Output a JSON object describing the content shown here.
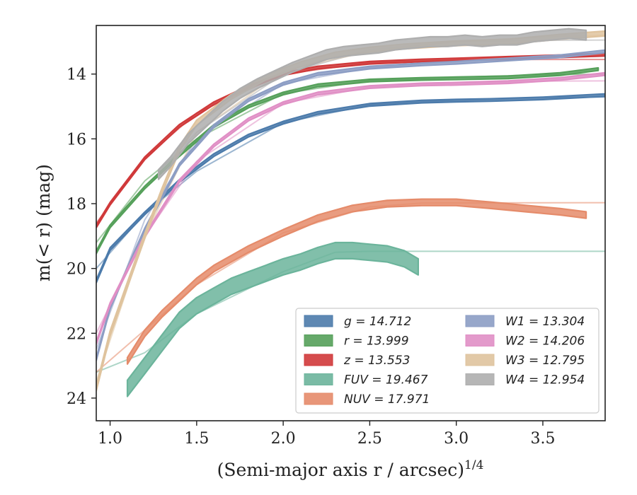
{
  "chart_data": {
    "type": "line",
    "xlabel": "(Semi-major axis r / arcsec)",
    "xlabel_exponent": "1/4",
    "ylabel": "m(< r) (mag)",
    "xlim": [
      0.92,
      3.86
    ],
    "ylim": [
      24.7,
      12.5
    ],
    "y_inverted": true,
    "grid": false,
    "legend_placement": "lower-right",
    "x_ticks": [
      "1.0",
      "1.5",
      "2.0",
      "2.5",
      "3.0",
      "3.5"
    ],
    "y_ticks": [
      "14",
      "16",
      "18",
      "20",
      "22",
      "24"
    ],
    "series": [
      {
        "key": "g",
        "name": "g = 14.712",
        "color": "#4c7bab",
        "band_width": 0.08,
        "curve": [
          [
            0.92,
            20.4
          ],
          [
            1.0,
            19.4
          ],
          [
            1.2,
            18.3
          ],
          [
            1.4,
            17.3
          ],
          [
            1.6,
            16.5
          ],
          [
            1.8,
            15.9
          ],
          [
            2.0,
            15.5
          ],
          [
            2.2,
            15.2
          ],
          [
            2.5,
            14.95
          ],
          [
            2.8,
            14.85
          ],
          [
            3.0,
            14.82
          ],
          [
            3.2,
            14.8
          ],
          [
            3.5,
            14.75
          ],
          [
            3.86,
            14.65
          ]
        ],
        "model": [
          [
            0.92,
            20.0
          ],
          [
            1.2,
            18.3
          ],
          [
            1.5,
            17.0
          ],
          [
            2.0,
            15.5
          ],
          [
            2.5,
            14.95
          ],
          [
            3.0,
            14.8
          ],
          [
            3.5,
            14.72
          ],
          [
            3.86,
            14.71
          ]
        ]
      },
      {
        "key": "r",
        "name": "r = 13.999",
        "color": "#55a05a",
        "band_width": 0.08,
        "curve": [
          [
            0.92,
            19.5
          ],
          [
            1.0,
            18.7
          ],
          [
            1.2,
            17.5
          ],
          [
            1.4,
            16.5
          ],
          [
            1.6,
            15.6
          ],
          [
            1.8,
            15.0
          ],
          [
            2.0,
            14.6
          ],
          [
            2.2,
            14.35
          ],
          [
            2.5,
            14.2
          ],
          [
            2.8,
            14.15
          ],
          [
            3.0,
            14.13
          ],
          [
            3.3,
            14.1
          ],
          [
            3.6,
            14.0
          ],
          [
            3.82,
            13.85
          ]
        ],
        "model": [
          [
            0.92,
            19.2
          ],
          [
            1.2,
            17.3
          ],
          [
            1.5,
            16.0
          ],
          [
            2.0,
            14.6
          ],
          [
            2.5,
            14.2
          ],
          [
            3.0,
            14.1
          ],
          [
            3.5,
            14.02
          ],
          [
            3.86,
            14.0
          ]
        ]
      },
      {
        "key": "z",
        "name": "z = 13.553",
        "color": "#d0393a",
        "band_width": 0.08,
        "curve": [
          [
            0.92,
            18.7
          ],
          [
            1.0,
            18.0
          ],
          [
            1.2,
            16.6
          ],
          [
            1.4,
            15.6
          ],
          [
            1.6,
            14.9
          ],
          [
            1.8,
            14.4
          ],
          [
            2.0,
            14.0
          ],
          [
            2.2,
            13.8
          ],
          [
            2.5,
            13.65
          ],
          [
            2.8,
            13.58
          ],
          [
            3.0,
            13.55
          ],
          [
            3.3,
            13.5
          ],
          [
            3.6,
            13.45
          ],
          [
            3.86,
            13.4
          ]
        ],
        "model": [
          [
            0.92,
            18.6
          ],
          [
            1.2,
            16.6
          ],
          [
            1.5,
            15.2
          ],
          [
            2.0,
            14.0
          ],
          [
            2.5,
            13.65
          ],
          [
            3.0,
            13.56
          ],
          [
            3.5,
            13.55
          ],
          [
            3.86,
            13.55
          ]
        ]
      },
      {
        "key": "FUV",
        "name": "FUV = 19.467",
        "color": "#6bb49b",
        "band_width": 0.5,
        "curve": [
          [
            1.1,
            23.7
          ],
          [
            1.2,
            23.0
          ],
          [
            1.3,
            22.3
          ],
          [
            1.4,
            21.6
          ],
          [
            1.5,
            21.15
          ],
          [
            1.6,
            20.85
          ],
          [
            1.7,
            20.55
          ],
          [
            1.8,
            20.35
          ],
          [
            1.9,
            20.15
          ],
          [
            2.0,
            19.95
          ],
          [
            2.1,
            19.8
          ],
          [
            2.2,
            19.6
          ],
          [
            2.3,
            19.45
          ],
          [
            2.4,
            19.45
          ],
          [
            2.5,
            19.5
          ],
          [
            2.6,
            19.55
          ],
          [
            2.7,
            19.7
          ],
          [
            2.78,
            19.95
          ]
        ],
        "model": [
          [
            0.92,
            23.2
          ],
          [
            1.2,
            22.6
          ],
          [
            1.5,
            21.4
          ],
          [
            2.0,
            20.1
          ],
          [
            2.3,
            19.5
          ],
          [
            2.5,
            19.47
          ],
          [
            3.86,
            19.47
          ]
        ]
      },
      {
        "key": "NUV",
        "name": "NUV = 17.971",
        "color": "#e58b6a",
        "band_width": 0.2,
        "curve": [
          [
            1.1,
            22.85
          ],
          [
            1.2,
            22.0
          ],
          [
            1.3,
            21.4
          ],
          [
            1.4,
            20.9
          ],
          [
            1.5,
            20.4
          ],
          [
            1.6,
            20.0
          ],
          [
            1.8,
            19.4
          ],
          [
            2.0,
            18.9
          ],
          [
            2.2,
            18.45
          ],
          [
            2.4,
            18.15
          ],
          [
            2.6,
            18.0
          ],
          [
            2.8,
            17.96
          ],
          [
            3.0,
            17.96
          ],
          [
            3.2,
            18.05
          ],
          [
            3.4,
            18.15
          ],
          [
            3.5,
            18.2
          ],
          [
            3.6,
            18.25
          ],
          [
            3.75,
            18.35
          ]
        ],
        "model": [
          [
            0.92,
            23.2
          ],
          [
            1.2,
            21.9
          ],
          [
            1.5,
            20.5
          ],
          [
            2.0,
            18.9
          ],
          [
            2.5,
            18.1
          ],
          [
            2.8,
            17.98
          ],
          [
            3.86,
            17.97
          ]
        ]
      },
      {
        "key": "W1",
        "name": "W1 = 13.304",
        "color": "#8c9dc4",
        "band_width": 0.08,
        "curve": [
          [
            0.92,
            22.8
          ],
          [
            1.0,
            21.2
          ],
          [
            1.2,
            18.8
          ],
          [
            1.4,
            16.8
          ],
          [
            1.6,
            15.6
          ],
          [
            1.8,
            14.8
          ],
          [
            2.0,
            14.3
          ],
          [
            2.2,
            14.0
          ],
          [
            2.5,
            13.8
          ],
          [
            2.8,
            13.7
          ],
          [
            3.0,
            13.65
          ],
          [
            3.3,
            13.55
          ],
          [
            3.6,
            13.45
          ],
          [
            3.86,
            13.3
          ]
        ],
        "model": [
          [
            0.92,
            22.5
          ],
          [
            1.2,
            18.5
          ],
          [
            1.5,
            16.0
          ],
          [
            2.0,
            14.3
          ],
          [
            2.5,
            13.8
          ],
          [
            3.0,
            13.6
          ],
          [
            3.5,
            13.5
          ],
          [
            3.86,
            13.45
          ]
        ]
      },
      {
        "key": "W2",
        "name": "W2 = 14.206",
        "color": "#e08fc5",
        "band_width": 0.08,
        "curve": [
          [
            0.92,
            22.3
          ],
          [
            1.0,
            21.1
          ],
          [
            1.2,
            19.0
          ],
          [
            1.4,
            17.3
          ],
          [
            1.6,
            16.2
          ],
          [
            1.8,
            15.4
          ],
          [
            2.0,
            14.9
          ],
          [
            2.2,
            14.6
          ],
          [
            2.5,
            14.4
          ],
          [
            2.8,
            14.32
          ],
          [
            3.0,
            14.3
          ],
          [
            3.3,
            14.25
          ],
          [
            3.6,
            14.15
          ],
          [
            3.86,
            14.0
          ]
        ],
        "model": [
          [
            0.92,
            22.0
          ],
          [
            1.2,
            19.0
          ],
          [
            1.5,
            16.7
          ],
          [
            2.0,
            14.9
          ],
          [
            2.5,
            14.4
          ],
          [
            3.0,
            14.28
          ],
          [
            3.5,
            14.22
          ],
          [
            3.86,
            14.21
          ]
        ]
      },
      {
        "key": "W3",
        "name": "W3 = 12.795",
        "color": "#dfc39d",
        "band_width": 0.15,
        "curve": [
          [
            0.92,
            23.7
          ],
          [
            1.0,
            22.0
          ],
          [
            1.1,
            20.5
          ],
          [
            1.2,
            19.0
          ],
          [
            1.3,
            17.6
          ],
          [
            1.4,
            16.3
          ],
          [
            1.5,
            15.5
          ],
          [
            1.7,
            14.7
          ],
          [
            1.9,
            14.1
          ],
          [
            2.1,
            13.7
          ],
          [
            2.3,
            13.4
          ],
          [
            2.5,
            13.25
          ],
          [
            2.7,
            13.15
          ],
          [
            3.0,
            13.05
          ],
          [
            3.3,
            13.0
          ],
          [
            3.6,
            12.85
          ],
          [
            3.86,
            12.75
          ]
        ],
        "model": [
          [
            0.92,
            23.5
          ],
          [
            1.2,
            19.0
          ],
          [
            1.5,
            15.8
          ],
          [
            2.0,
            13.9
          ],
          [
            2.5,
            13.3
          ],
          [
            3.0,
            13.0
          ],
          [
            3.5,
            12.85
          ],
          [
            3.86,
            12.8
          ]
        ]
      },
      {
        "key": "W4",
        "name": "W4 = 12.954",
        "color": "#aeaeae",
        "band_width": 0.3,
        "curve": [
          [
            1.28,
            17.1
          ],
          [
            1.35,
            16.7
          ],
          [
            1.45,
            16.0
          ],
          [
            1.55,
            15.5
          ],
          [
            1.65,
            15.0
          ],
          [
            1.75,
            14.6
          ],
          [
            1.85,
            14.3
          ],
          [
            1.95,
            14.05
          ],
          [
            2.05,
            13.8
          ],
          [
            2.15,
            13.6
          ],
          [
            2.25,
            13.4
          ],
          [
            2.35,
            13.3
          ],
          [
            2.45,
            13.25
          ],
          [
            2.55,
            13.2
          ],
          [
            2.65,
            13.1
          ],
          [
            2.75,
            13.05
          ],
          [
            2.85,
            13.0
          ],
          [
            2.95,
            13.0
          ],
          [
            3.05,
            12.95
          ],
          [
            3.15,
            13.0
          ],
          [
            3.25,
            12.95
          ],
          [
            3.35,
            12.95
          ],
          [
            3.45,
            12.85
          ],
          [
            3.55,
            12.8
          ],
          [
            3.65,
            12.75
          ],
          [
            3.75,
            12.8
          ]
        ],
        "model": [
          [
            1.28,
            17.0
          ],
          [
            1.5,
            15.8
          ],
          [
            2.0,
            14.0
          ],
          [
            2.5,
            13.25
          ],
          [
            3.0,
            13.0
          ],
          [
            3.5,
            12.96
          ],
          [
            3.86,
            12.95
          ]
        ]
      }
    ],
    "legend_columns": [
      [
        "g",
        "r",
        "z",
        "FUV",
        "NUV"
      ],
      [
        "W1",
        "W2",
        "W3",
        "W4"
      ]
    ]
  }
}
